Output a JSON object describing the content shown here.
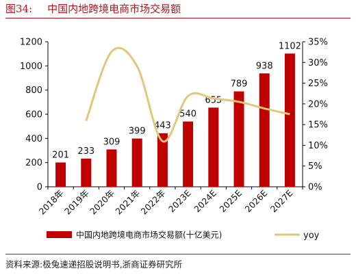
{
  "header": {
    "figure_label": "图34:",
    "title": "中国内地跨境电商市场交易额"
  },
  "source": "资料来源:极兔速递招股说明书,浙商证券研究所",
  "chart_data": {
    "type": "bar",
    "categories": [
      "2018年",
      "2019年",
      "2020年",
      "2021年",
      "2022年",
      "2023E",
      "2024E",
      "2025E",
      "2026E",
      "2027E"
    ],
    "series": [
      {
        "name": "中国内地跨境电商市场交易额(十亿美元)",
        "type": "bar",
        "axis": "left",
        "color": "#c00000",
        "values": [
          201,
          233,
          309,
          399,
          443,
          540,
          655,
          789,
          938,
          1102
        ],
        "labels": [
          "201",
          "233",
          "309",
          "399",
          "443",
          "540",
          "655",
          "789",
          "938",
          "1102"
        ]
      },
      {
        "name": "yoy",
        "type": "line",
        "axis": "right",
        "color": "#e3c67a",
        "values": [
          null,
          0.159,
          0.326,
          0.291,
          0.11,
          0.219,
          0.213,
          0.205,
          0.189,
          0.175
        ]
      }
    ],
    "y_left": {
      "min": 0,
      "max": 1200,
      "ticks": [
        0,
        200,
        400,
        600,
        800,
        1000,
        1200
      ],
      "tick_labels": [
        "0",
        "200",
        "400",
        "600",
        "800",
        "1000",
        "1200"
      ]
    },
    "y_right": {
      "min": 0,
      "max": 0.35,
      "ticks": [
        0,
        0.05,
        0.1,
        0.15,
        0.2,
        0.25,
        0.3,
        0.35
      ],
      "tick_labels": [
        "0%",
        "5%",
        "10%",
        "15%",
        "20%",
        "25%",
        "30%",
        "35%"
      ]
    },
    "grid": false,
    "legend_position": "bottom"
  }
}
